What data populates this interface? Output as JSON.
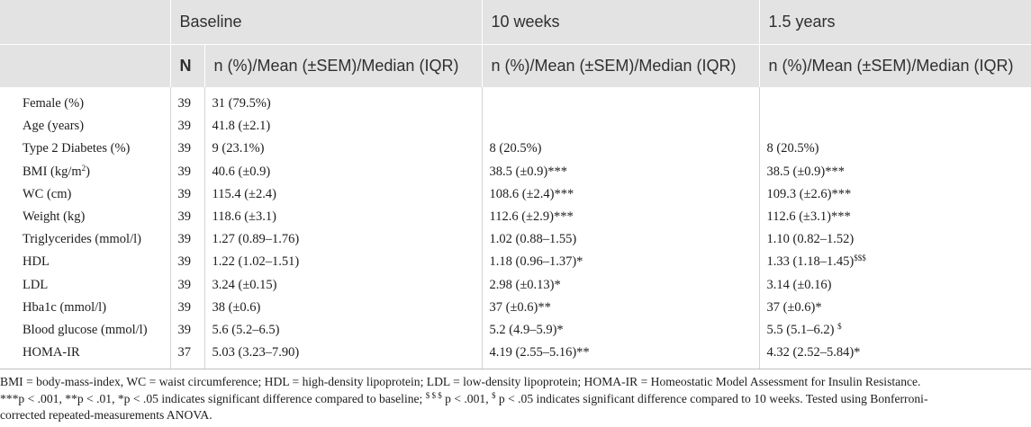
{
  "table": {
    "groups": [
      "Baseline",
      "10 weeks",
      "1.5 years"
    ],
    "n_header": "N",
    "stat_header": "n (%)/Mean (±SEM)/Median (IQR)",
    "rows": [
      {
        "label": "Female (%)",
        "n": "39",
        "baseline": "31 (79.5%)",
        "w10": "",
        "w10_sup": "",
        "y15": "",
        "y15_sup": ""
      },
      {
        "label": "Age (years)",
        "n": "39",
        "baseline": "41.8 (±2.1)",
        "w10": "",
        "w10_sup": "",
        "y15": "",
        "y15_sup": ""
      },
      {
        "label": "Type 2 Diabetes (%)",
        "n": "39",
        "baseline": "9 (23.1%)",
        "w10": "8 (20.5%)",
        "w10_sup": "",
        "y15": "8 (20.5%)",
        "y15_sup": ""
      },
      {
        "label": "BMI (kg/m",
        "label_sup": "2",
        "label_tail": ")",
        "n": "39",
        "baseline": "40.6 (±0.9)",
        "w10": "38.5 (±0.9)***",
        "w10_sup": "",
        "y15": "38.5 (±0.9)***",
        "y15_sup": ""
      },
      {
        "label": "WC (cm)",
        "n": "39",
        "baseline": "115.4 (±2.4)",
        "w10": "108.6 (±2.4)***",
        "w10_sup": "",
        "y15": "109.3 (±2.6)***",
        "y15_sup": ""
      },
      {
        "label": "Weight (kg)",
        "n": "39",
        "baseline": "118.6 (±3.1)",
        "w10": "112.6 (±2.9)***",
        "w10_sup": "",
        "y15": "112.6 (±3.1)***",
        "y15_sup": ""
      },
      {
        "label": "Triglycerides (mmol/l)",
        "n": "39",
        "baseline": "1.27 (0.89–1.76)",
        "w10": "1.02 (0.88–1.55)",
        "w10_sup": "",
        "y15": "1.10 (0.82–1.52)",
        "y15_sup": ""
      },
      {
        "label": "HDL",
        "n": "39",
        "baseline": "1.22 (1.02–1.51)",
        "w10": "1.18 (0.96–1.37)*",
        "w10_sup": "",
        "y15": "1.33 (1.18–1.45)",
        "y15_sup": "$$$"
      },
      {
        "label": "LDL",
        "n": "39",
        "baseline": "3.24 (±0.15)",
        "w10": "2.98 (±0.13)*",
        "w10_sup": "",
        "y15": "3.14 (±0.16)",
        "y15_sup": ""
      },
      {
        "label": "Hba1c (mmol/l)",
        "n": "39",
        "baseline": "38 (±0.6)",
        "w10": "37 (±0.6)**",
        "w10_sup": "",
        "y15": "37 (±0.6)*",
        "y15_sup": ""
      },
      {
        "label": "Blood glucose (mmol/l)",
        "n": "39",
        "baseline": "5.6 (5.2–6.5)",
        "w10": "5.2 (4.9–5.9)*",
        "w10_sup": "",
        "y15": "5.5 (5.1–6.2) ",
        "y15_sup": "$"
      },
      {
        "label": "HOMA-IR",
        "n": "37",
        "baseline": "5.03 (3.23–7.90)",
        "w10": "4.19 (2.55–5.16)**",
        "w10_sup": "",
        "y15": "4.32 (2.52–5.84)*",
        "y15_sup": ""
      }
    ]
  },
  "footnote": {
    "abbreviations": "BMI = body-mass-index, WC = waist circumference; HDL = high-density lipoprotein; LDL = low-density lipoprotein; HOMA-IR = Homeostatic Model Assessment for Insulin Resistance.",
    "sig_p001": "***p < .001, **p < .01, *p < .05 indicates significant difference compared to baseline;",
    "sig_tenweeks_sup1": "$ $ $",
    "sig_tenweeks_mid": " p < .001, ",
    "sig_tenweeks_sup2": "$",
    "sig_tenweeks_tail": " p < .05 indicates significant difference compared to 10 weeks. Tested using Bonferroni-",
    "method_tail": "corrected repeated-measurements ANOVA."
  }
}
